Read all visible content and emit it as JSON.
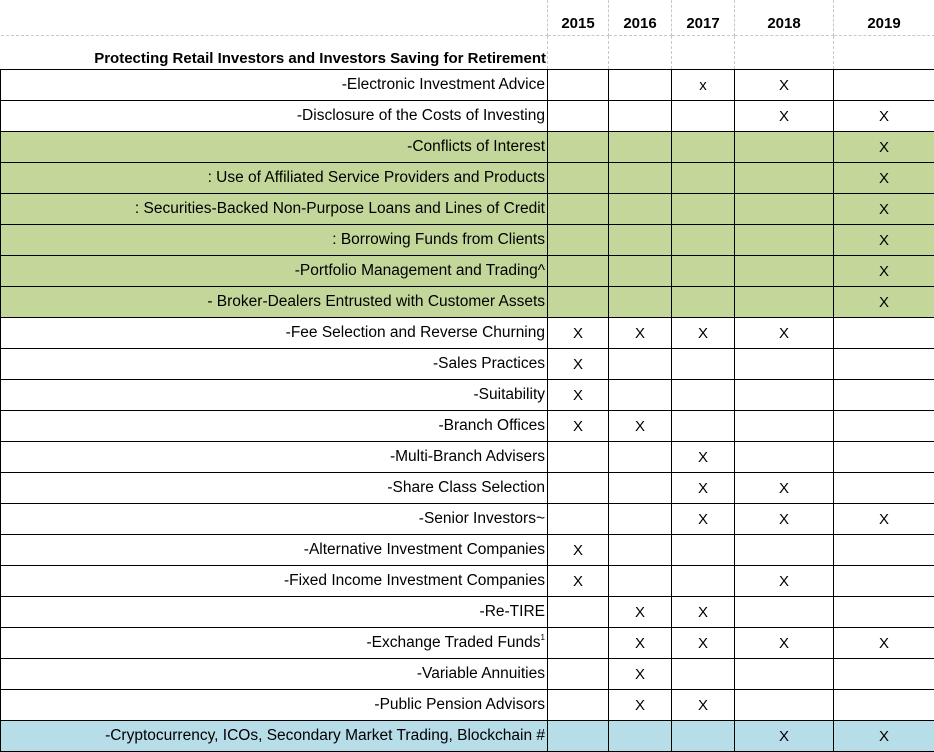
{
  "years": [
    "2015",
    "2016",
    "2017",
    "2018",
    "2019"
  ],
  "section_title": "Protecting Retail Investors and Investors Saving for Retirement",
  "rows": [
    {
      "label": "-Electronic Investment Advice",
      "highlight": "",
      "marks": [
        "",
        "",
        "x",
        "X",
        ""
      ]
    },
    {
      "label": "-Disclosure of the Costs of Investing",
      "highlight": "",
      "marks": [
        "",
        "",
        "",
        "X",
        "X"
      ]
    },
    {
      "label": "-Conflicts of Interest",
      "highlight": "green",
      "marks": [
        "",
        "",
        "",
        "",
        "X"
      ]
    },
    {
      "label": ": Use of Affiliated Service Providers and Products",
      "highlight": "green",
      "marks": [
        "",
        "",
        "",
        "",
        "X"
      ]
    },
    {
      "label": ": Securities-Backed Non-Purpose Loans and Lines of Credit",
      "highlight": "green",
      "marks": [
        "",
        "",
        "",
        "",
        "X"
      ]
    },
    {
      "label": ": Borrowing Funds from Clients",
      "highlight": "green",
      "marks": [
        "",
        "",
        "",
        "",
        "X"
      ]
    },
    {
      "label": "-Portfolio Management and Trading^",
      "highlight": "green",
      "marks": [
        "",
        "",
        "",
        "",
        "X"
      ]
    },
    {
      "label": "- Broker-Dealers Entrusted with Customer Assets",
      "highlight": "green",
      "marks": [
        "",
        "",
        "",
        "",
        "X"
      ]
    },
    {
      "label": "-Fee Selection and Reverse Churning",
      "highlight": "",
      "marks": [
        "X",
        "X",
        "X",
        "X",
        ""
      ]
    },
    {
      "label": "-Sales Practices",
      "highlight": "",
      "marks": [
        "X",
        "",
        "",
        "",
        ""
      ]
    },
    {
      "label": "-Suitability",
      "highlight": "",
      "marks": [
        "X",
        "",
        "",
        "",
        ""
      ]
    },
    {
      "label": "-Branch Offices",
      "highlight": "",
      "marks": [
        "X",
        "X",
        "",
        "",
        ""
      ]
    },
    {
      "label": "-Multi-Branch Advisers",
      "highlight": "",
      "marks": [
        "",
        "",
        "X",
        "",
        ""
      ]
    },
    {
      "label": "-Share Class Selection",
      "highlight": "",
      "marks": [
        "",
        "",
        "X",
        "X",
        ""
      ]
    },
    {
      "label": "-Senior Investors~",
      "highlight": "",
      "marks": [
        "",
        "",
        "X",
        "X",
        "X"
      ]
    },
    {
      "label": "-Alternative Investment Companies",
      "highlight": "",
      "marks": [
        "X",
        "",
        "",
        "",
        ""
      ]
    },
    {
      "label": "-Fixed Income Investment Companies",
      "highlight": "",
      "marks": [
        "X",
        "",
        "",
        "X",
        ""
      ]
    },
    {
      "label": "-Re-TIRE",
      "highlight": "",
      "marks": [
        "",
        "X",
        "X",
        "",
        ""
      ]
    },
    {
      "label": "-Exchange Traded Funds",
      "sup": "1",
      "highlight": "",
      "marks": [
        "",
        "X",
        "X",
        "X",
        "X"
      ]
    },
    {
      "label": "-Variable Annuities",
      "highlight": "",
      "marks": [
        "",
        "X",
        "",
        "",
        ""
      ]
    },
    {
      "label": "-Public Pension Advisors",
      "highlight": "",
      "marks": [
        "",
        "X",
        "X",
        "",
        ""
      ]
    },
    {
      "label": "-Cryptocurrency, ICOs, Secondary Market Trading, Blockchain #",
      "highlight": "blue",
      "marks": [
        "",
        "",
        "",
        "X",
        "X"
      ]
    }
  ],
  "colors": {
    "green_highlight": "#c4d79b",
    "blue_highlight": "#b7dde8",
    "border": "#000000"
  }
}
